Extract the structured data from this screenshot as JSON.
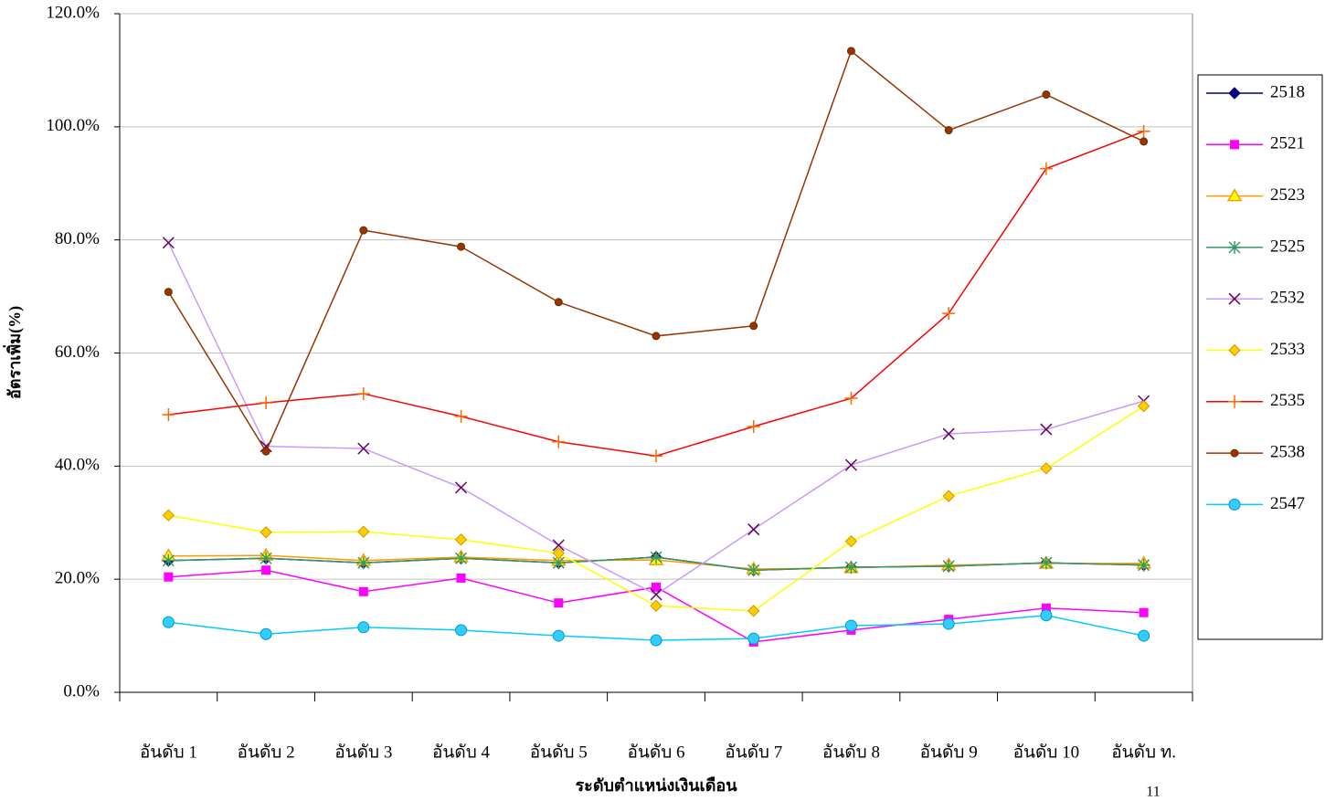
{
  "chart_data": {
    "type": "line",
    "x_label": "ระดับตำแหน่งเงินเดือน",
    "y_label": "อัตราเพิ่ม(%)",
    "categories": [
      "อันดับ 1",
      "อันดับ 2",
      "อันดับ 3",
      "อันดับ 4",
      "อันดับ 5",
      "อันดับ 6",
      "อันดับ 7",
      "อันดับ 8",
      "อันดับ 9",
      "อันดับ 10",
      "อันดับ ท."
    ],
    "ylim": [
      0,
      120
    ],
    "yticks": [
      {
        "value": 0,
        "label": "0.0%"
      },
      {
        "value": 20,
        "label": "20.0%"
      },
      {
        "value": 40,
        "label": "40.0%"
      },
      {
        "value": 60,
        "label": "60.0%"
      },
      {
        "value": 80,
        "label": "80.0%"
      },
      {
        "value": 100,
        "label": "100.0%"
      },
      {
        "value": 120,
        "label": "120.0%"
      }
    ],
    "grid": true,
    "legend": "right",
    "series": [
      {
        "name": "2518",
        "color": "#000080",
        "marker": "diamond",
        "marker_color": "#000080",
        "values": [
          23.3,
          23.7,
          22.9,
          23.7,
          22.9,
          23.9,
          21.6,
          22.1,
          22.3,
          22.9,
          22.5
        ]
      },
      {
        "name": "2521",
        "color": "#ff00ff",
        "marker": "square",
        "marker_color": "#ff00ff",
        "values": [
          20.4,
          21.6,
          17.8,
          20.2,
          15.8,
          18.6,
          8.9,
          11.0,
          12.9,
          14.9,
          14.1
        ]
      },
      {
        "name": "2523",
        "color": "#ff9900",
        "marker": "triangle",
        "marker_color": "#ffff00",
        "values": [
          24.1,
          24.2,
          23.3,
          23.9,
          23.3,
          23.4,
          21.8,
          22.0,
          22.5,
          22.8,
          22.8
        ]
      },
      {
        "name": "2525",
        "color": "#339966",
        "marker": "asterisk",
        "marker_color": "#339966",
        "values": [
          23.3,
          23.7,
          22.9,
          23.7,
          22.9,
          23.9,
          21.6,
          22.1,
          22.3,
          22.9,
          22.5
        ]
      },
      {
        "name": "2532",
        "color": "#cc99ff",
        "marker": "x",
        "marker_color": "#660066",
        "values": [
          79.5,
          43.5,
          43.1,
          36.2,
          26.0,
          17.3,
          28.8,
          40.2,
          45.7,
          46.5,
          51.5
        ]
      },
      {
        "name": "2533",
        "color": "#ffff00",
        "marker": "diamond",
        "marker_color": "#ffcc00",
        "values": [
          31.3,
          28.3,
          28.4,
          27.0,
          24.6,
          15.3,
          14.4,
          26.7,
          34.7,
          39.6,
          50.6
        ]
      },
      {
        "name": "2535",
        "color": "#ff0000",
        "marker": "plus",
        "marker_color": "#ff6600",
        "values": [
          49.1,
          51.2,
          52.8,
          48.8,
          44.3,
          41.8,
          47.0,
          52.0,
          67.0,
          92.6,
          99.2
        ]
      },
      {
        "name": "2538",
        "color": "#993300",
        "marker": "dot",
        "marker_color": "#993300",
        "values": [
          70.8,
          42.6,
          81.7,
          78.8,
          69.0,
          63.0,
          64.8,
          113.4,
          99.4,
          105.7,
          97.4
        ]
      },
      {
        "name": "2547",
        "color": "#00ccff",
        "marker": "circle",
        "marker_color": "#33ccff",
        "values": [
          12.4,
          10.3,
          11.5,
          11.0,
          10.0,
          9.2,
          9.5,
          11.8,
          12.1,
          13.6,
          10.0
        ]
      }
    ]
  },
  "page_number": "11"
}
